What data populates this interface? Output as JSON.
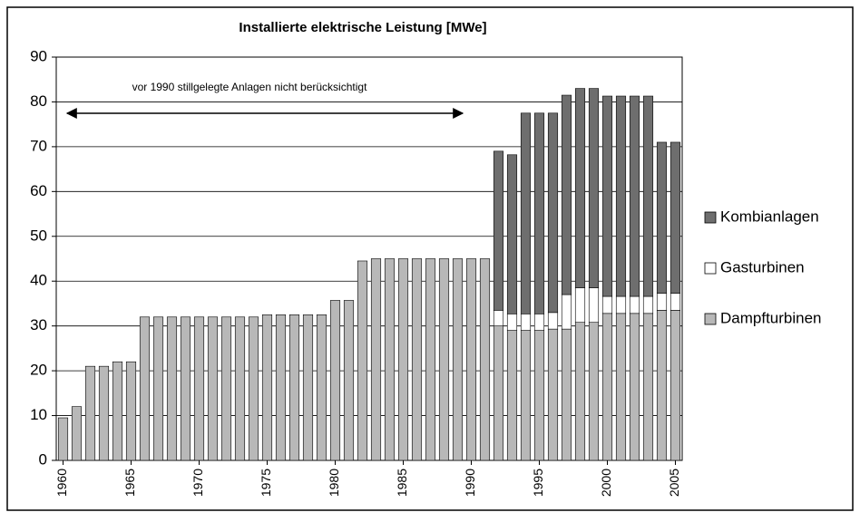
{
  "chart_data": {
    "type": "stacked_bar",
    "title": "Installierte elektrische Leistung  [MWe]",
    "annotation": "vor 1990 stillgelegte Anlagen nicht berücksichtigt",
    "categories": [
      "1960",
      null,
      null,
      null,
      null,
      "1965",
      null,
      null,
      null,
      null,
      "1970",
      null,
      null,
      null,
      null,
      "1975",
      null,
      null,
      null,
      null,
      "1980",
      null,
      null,
      null,
      null,
      "1985",
      null,
      null,
      null,
      null,
      "1990",
      null,
      null,
      null,
      null,
      "1995",
      null,
      null,
      null,
      null,
      "2000",
      null,
      null,
      null,
      null,
      "2005"
    ],
    "series": [
      {
        "name": "Dampfturbinen",
        "color": "#b8b8b8",
        "values": [
          9.5,
          12,
          21,
          21,
          22,
          22,
          32,
          32,
          32,
          32,
          32,
          32,
          32,
          32,
          32,
          32.5,
          32.5,
          32.5,
          32.5,
          32.5,
          35.7,
          35.7,
          44.5,
          45,
          45,
          45,
          45,
          45,
          45,
          45,
          45,
          45,
          30,
          29,
          29,
          29,
          29.3,
          29.3,
          30.8,
          30.8,
          32.8,
          32.8,
          32.8,
          32.8,
          33.5,
          33.5
        ]
      },
      {
        "name": "Gasturbinen",
        "color": "#ffffff",
        "values": [
          0,
          0,
          0,
          0,
          0,
          0,
          0,
          0,
          0,
          0,
          0,
          0,
          0,
          0,
          0,
          0,
          0,
          0,
          0,
          0,
          0,
          0,
          0,
          0,
          0,
          0,
          0,
          0,
          0,
          0,
          0,
          0,
          3.5,
          3.7,
          3.7,
          3.7,
          3.7,
          7.7,
          7.7,
          7.7,
          3.8,
          3.8,
          3.8,
          3.8,
          3.8,
          3.8
        ]
      },
      {
        "name": "Kombianlagen",
        "color": "#6e6e6e",
        "values": [
          0,
          0,
          0,
          0,
          0,
          0,
          0,
          0,
          0,
          0,
          0,
          0,
          0,
          0,
          0,
          0,
          0,
          0,
          0,
          0,
          0,
          0,
          0,
          0,
          0,
          0,
          0,
          0,
          0,
          0,
          0,
          0,
          35.5,
          35.5,
          44.8,
          44.8,
          44.5,
          44.5,
          44.5,
          44.5,
          44.7,
          44.7,
          44.7,
          44.7,
          33.7,
          33.7
        ]
      }
    ],
    "ylim": [
      0,
      90
    ],
    "yticks": [
      0,
      10,
      20,
      30,
      40,
      50,
      60,
      70,
      80,
      90
    ],
    "grid": true,
    "legend": "right"
  }
}
